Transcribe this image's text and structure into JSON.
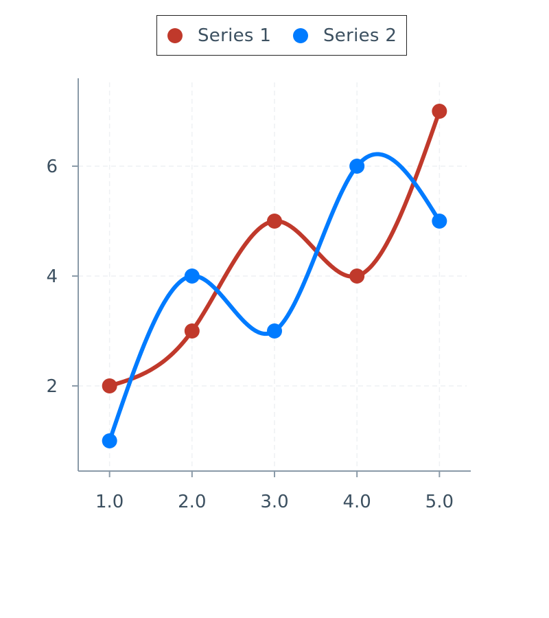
{
  "chart_data": {
    "type": "line",
    "x": [
      1.0,
      2.0,
      3.0,
      4.0,
      5.0
    ],
    "x_tick_labels": [
      "1.0",
      "2.0",
      "3.0",
      "4.0",
      "5.0"
    ],
    "y_ticks": [
      2,
      4,
      6
    ],
    "y_tick_labels": [
      "2",
      "4",
      "6"
    ],
    "xlim": [
      0.62,
      5.38
    ],
    "ylim": [
      0.45,
      7.6
    ],
    "grid": true,
    "smooth": true,
    "legend_position": "top-center",
    "series": [
      {
        "name": "Series 1",
        "color": "#c0392b",
        "values": [
          2,
          3,
          5,
          4,
          7
        ]
      },
      {
        "name": "Series 2",
        "color": "#007bff",
        "values": [
          1,
          4,
          3,
          6,
          5
        ]
      }
    ],
    "colors": {
      "axis": "#8a9aa8",
      "grid": "#eef1f4",
      "text": "#3c5060"
    }
  }
}
